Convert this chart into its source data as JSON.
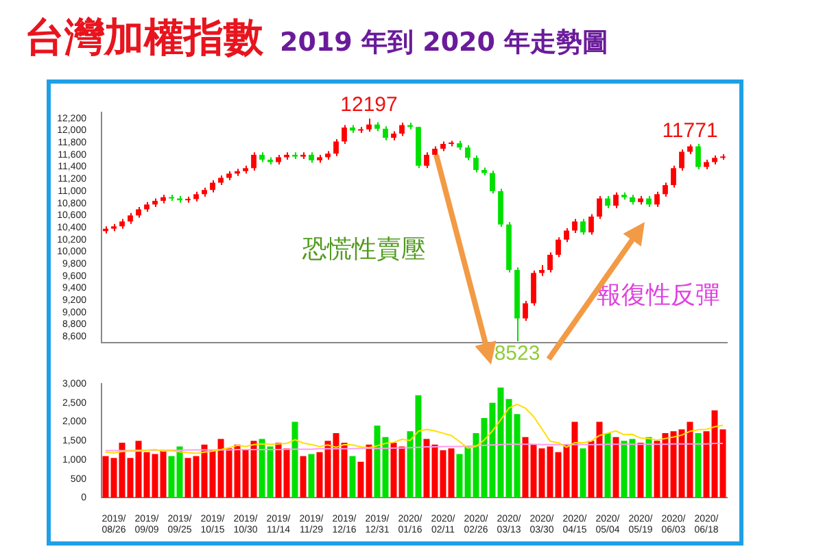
{
  "chart_data": [
    {
      "type": "candlestick",
      "title": "台灣加權指數",
      "subtitle": "2019 年到 2020 年走勢圖",
      "categories": [
        null,
        "2019/08/26",
        null,
        null,
        null,
        "2019/09/09",
        null,
        null,
        null,
        "2019/09/25",
        null,
        null,
        null,
        "2019/10/15",
        null,
        null,
        null,
        "2019/10/30",
        null,
        null,
        null,
        "2019/11/14",
        null,
        null,
        null,
        "2019/11/29",
        null,
        null,
        null,
        "2019/12/16",
        null,
        null,
        null,
        "2019/12/31",
        null,
        null,
        null,
        "2020/01/16",
        null,
        null,
        null,
        "2020/02/11",
        null,
        null,
        null,
        "2020/02/26",
        null,
        null,
        null,
        "2020/03/13",
        null,
        null,
        null,
        "2020/03/30",
        null,
        null,
        null,
        "2020/04/15",
        null,
        null,
        null,
        "2020/05/04",
        null,
        null,
        null,
        "2020/05/19",
        null,
        null,
        null,
        "2020/06/03",
        null,
        null,
        null,
        "2020/06/18",
        null,
        null
      ],
      "ohlc": [
        [
          10340,
          10420,
          10300,
          10380
        ],
        [
          10380,
          10460,
          10340,
          10420
        ],
        [
          10420,
          10540,
          10380,
          10500
        ],
        [
          10500,
          10640,
          10460,
          10600
        ],
        [
          10600,
          10740,
          10560,
          10700
        ],
        [
          10700,
          10820,
          10660,
          10780
        ],
        [
          10780,
          10880,
          10740,
          10840
        ],
        [
          10840,
          10940,
          10800,
          10900
        ],
        [
          10900,
          10940,
          10840,
          10880
        ],
        [
          10880,
          10920,
          10810,
          10850
        ],
        [
          10850,
          10910,
          10810,
          10870
        ],
        [
          10870,
          10990,
          10830,
          10950
        ],
        [
          10950,
          11060,
          10910,
          11020
        ],
        [
          11020,
          11180,
          10980,
          11140
        ],
        [
          11140,
          11260,
          11100,
          11220
        ],
        [
          11220,
          11330,
          11180,
          11290
        ],
        [
          11290,
          11370,
          11250,
          11330
        ],
        [
          11330,
          11420,
          11290,
          11380
        ],
        [
          11380,
          11640,
          11340,
          11600
        ],
        [
          11600,
          11640,
          11480,
          11520
        ],
        [
          11520,
          11560,
          11440,
          11480
        ],
        [
          11480,
          11600,
          11440,
          11560
        ],
        [
          11560,
          11640,
          11520,
          11600
        ],
        [
          11600,
          11640,
          11530,
          11570
        ],
        [
          11570,
          11640,
          11530,
          11600
        ],
        [
          11600,
          11640,
          11470,
          11510
        ],
        [
          11510,
          11600,
          11470,
          11560
        ],
        [
          11560,
          11660,
          11520,
          11620
        ],
        [
          11620,
          11860,
          11580,
          11820
        ],
        [
          11820,
          12090,
          11780,
          12050
        ],
        [
          12050,
          12090,
          11960,
          12000
        ],
        [
          12000,
          12060,
          11960,
          12020
        ],
        [
          12020,
          12197,
          11980,
          12100
        ],
        [
          12100,
          12140,
          11990,
          12030
        ],
        [
          12030,
          12070,
          11840,
          11880
        ],
        [
          11880,
          11990,
          11840,
          11950
        ],
        [
          11950,
          12130,
          11910,
          12090
        ],
        [
          12090,
          12130,
          12020,
          12060
        ],
        [
          12060,
          12060,
          11380,
          11420
        ],
        [
          11420,
          11640,
          11380,
          11600
        ],
        [
          11600,
          11740,
          11560,
          11700
        ],
        [
          11700,
          11820,
          11660,
          11780
        ],
        [
          11780,
          11830,
          11740,
          11790
        ],
        [
          11790,
          11830,
          11680,
          11720
        ],
        [
          11720,
          11760,
          11510,
          11550
        ],
        [
          11550,
          11590,
          11310,
          11350
        ],
        [
          11350,
          11390,
          11260,
          11300
        ],
        [
          11300,
          11340,
          10960,
          11000
        ],
        [
          11000,
          11040,
          10410,
          10450
        ],
        [
          10450,
          10490,
          9660,
          9700
        ],
        [
          9700,
          9740,
          8523,
          8900
        ],
        [
          8900,
          9190,
          8860,
          9150
        ],
        [
          9150,
          9690,
          9110,
          9650
        ],
        [
          9650,
          9780,
          9600,
          9700
        ],
        [
          9700,
          9990,
          9660,
          9950
        ],
        [
          9950,
          10240,
          9910,
          10200
        ],
        [
          10200,
          10390,
          10160,
          10350
        ],
        [
          10350,
          10540,
          10310,
          10500
        ],
        [
          10500,
          10540,
          10280,
          10320
        ],
        [
          10320,
          10620,
          10280,
          10580
        ],
        [
          10580,
          10920,
          10540,
          10880
        ],
        [
          10880,
          10920,
          10720,
          10760
        ],
        [
          10760,
          10980,
          10720,
          10940
        ],
        [
          10940,
          10980,
          10860,
          10900
        ],
        [
          10900,
          10940,
          10780,
          10820
        ],
        [
          10820,
          10920,
          10780,
          10880
        ],
        [
          10880,
          10920,
          10740,
          10780
        ],
        [
          10780,
          10990,
          10740,
          10950
        ],
        [
          10950,
          11140,
          10910,
          11100
        ],
        [
          11100,
          11420,
          11060,
          11380
        ],
        [
          11380,
          11690,
          11340,
          11650
        ],
        [
          11650,
          11771,
          11610,
          11740
        ],
        [
          11740,
          11780,
          11360,
          11400
        ],
        [
          11400,
          11520,
          11360,
          11480
        ],
        [
          11480,
          11590,
          11440,
          11550
        ],
        [
          11550,
          11610,
          11520,
          11570
        ]
      ],
      "colors": [
        "#ff0000",
        "#ff0000",
        "#ff0000",
        "#ff0000",
        "#ff0000",
        "#ff0000",
        "#ff0000",
        "#ff0000",
        "#00e000",
        "#00e000",
        "#ff0000",
        "#ff0000",
        "#ff0000",
        "#ff0000",
        "#ff0000",
        "#ff0000",
        "#ff0000",
        "#ff0000",
        "#ff0000",
        "#00e000",
        "#00e000",
        "#ff0000",
        "#ff0000",
        "#00e000",
        "#ff0000",
        "#00e000",
        "#ff0000",
        "#ff0000",
        "#ff0000",
        "#ff0000",
        "#00e000",
        "#ff0000",
        "#ff0000",
        "#00e000",
        "#00e000",
        "#ff0000",
        "#ff0000",
        "#00e000",
        "#00e000",
        "#ff0000",
        "#ff0000",
        "#ff0000",
        "#ff0000",
        "#00e000",
        "#00e000",
        "#00e000",
        "#00e000",
        "#00e000",
        "#00e000",
        "#00e000",
        "#00e000",
        "#ff0000",
        "#ff0000",
        "#ff0000",
        "#ff0000",
        "#ff0000",
        "#ff0000",
        "#ff0000",
        "#00e000",
        "#ff0000",
        "#ff0000",
        "#00e000",
        "#ff0000",
        "#00e000",
        "#00e000",
        "#ff0000",
        "#00e000",
        "#ff0000",
        "#ff0000",
        "#ff0000",
        "#ff0000",
        "#ff0000",
        "#00e000",
        "#ff0000",
        "#ff0000",
        "#ff0000"
      ],
      "ylim": [
        8500,
        12300
      ],
      "yticks": [
        {
          "value": 8600,
          "label": "8,600"
        },
        {
          "value": 8800,
          "label": "8,800"
        },
        {
          "value": 9000,
          "label": "9,000"
        },
        {
          "value": 9200,
          "label": "9,200"
        },
        {
          "value": 9400,
          "label": "9,400"
        },
        {
          "value": 9600,
          "label": "9,600"
        },
        {
          "value": 9800,
          "label": "9,800"
        },
        {
          "value": 10000,
          "label": "10,000"
        },
        {
          "value": 10200,
          "label": "10,200"
        },
        {
          "value": 10400,
          "label": "10,400"
        },
        {
          "value": 10600,
          "label": "10,600"
        },
        {
          "value": 10800,
          "label": "10,800"
        },
        {
          "value": 11000,
          "label": "11,000"
        },
        {
          "value": 11200,
          "label": "11,200"
        },
        {
          "value": 11400,
          "label": "11,400"
        },
        {
          "value": 11600,
          "label": "11,600"
        },
        {
          "value": 11800,
          "label": "11,800"
        },
        {
          "value": 12000,
          "label": "12,000"
        },
        {
          "value": 12200,
          "label": "12,200"
        }
      ],
      "tick_labels": "y",
      "annotations": [
        {
          "text": "12197",
          "y": 12197
        },
        {
          "text": "8523",
          "y": 8523
        },
        {
          "text": "11771",
          "y": 11771
        },
        "恐慌性賣壓",
        "報復性反彈"
      ]
    },
    {
      "type": "bar",
      "categories": [
        null,
        "2019/08/26",
        null,
        null,
        null,
        "2019/09/09",
        null,
        null,
        null,
        "2019/09/25",
        null,
        null,
        null,
        "2019/10/15",
        null,
        null,
        null,
        "2019/10/30",
        null,
        null,
        null,
        "2019/11/14",
        null,
        null,
        null,
        "2019/11/29",
        null,
        null,
        null,
        "2019/12/16",
        null,
        null,
        null,
        "2019/12/31",
        null,
        null,
        null,
        "2020/01/16",
        null,
        null,
        null,
        "2020/02/11",
        null,
        null,
        null,
        "2020/02/26",
        null,
        null,
        null,
        "2020/03/13",
        null,
        null,
        null,
        "2020/03/30",
        null,
        null,
        null,
        "2020/04/15",
        null,
        null,
        null,
        "2020/05/04",
        null,
        null,
        null,
        "2020/05/19",
        null,
        null,
        null,
        "2020/06/03",
        null,
        null,
        null,
        "2020/06/18",
        null,
        null
      ],
      "series": [
        {
          "type": "bar",
          "colors": [
            "#ff0000",
            "#ff0000",
            "#ff0000",
            "#ff0000",
            "#ff0000",
            "#ff0000",
            "#ff0000",
            "#ff0000",
            "#00e000",
            "#00e000",
            "#ff0000",
            "#ff0000",
            "#ff0000",
            "#ff0000",
            "#ff0000",
            "#ff0000",
            "#ff0000",
            "#ff0000",
            "#ff0000",
            "#00e000",
            "#00e000",
            "#ff0000",
            "#ff0000",
            "#00e000",
            "#ff0000",
            "#00e000",
            "#ff0000",
            "#ff0000",
            "#ff0000",
            "#ff0000",
            "#00e000",
            "#ff0000",
            "#ff0000",
            "#00e000",
            "#00e000",
            "#ff0000",
            "#ff0000",
            "#00e000",
            "#00e000",
            "#ff0000",
            "#ff0000",
            "#ff0000",
            "#ff0000",
            "#00e000",
            "#00e000",
            "#00e000",
            "#00e000",
            "#00e000",
            "#00e000",
            "#00e000",
            "#00e000",
            "#ff0000",
            "#ff0000",
            "#ff0000",
            "#ff0000",
            "#ff0000",
            "#ff0000",
            "#ff0000",
            "#00e000",
            "#ff0000",
            "#ff0000",
            "#00e000",
            "#ff0000",
            "#00e000",
            "#00e000",
            "#ff0000",
            "#00e000",
            "#ff0000",
            "#ff0000",
            "#ff0000",
            "#ff0000",
            "#ff0000",
            "#00e000",
            "#ff0000",
            "#ff0000",
            "#ff0000"
          ],
          "values": [
            1100,
            1050,
            1450,
            1050,
            1500,
            1200,
            1150,
            1250,
            1100,
            1350,
            1050,
            1100,
            1400,
            1250,
            1550,
            1300,
            1400,
            1250,
            1500,
            1550,
            1350,
            1450,
            1300,
            2000,
            1100,
            1150,
            1200,
            1500,
            1700,
            1450,
            1100,
            950,
            1400,
            1900,
            1600,
            1450,
            1350,
            1750,
            2700,
            1550,
            1400,
            1250,
            1300,
            1150,
            1350,
            1700,
            2100,
            2500,
            2900,
            2600,
            2200,
            1600,
            1400,
            1300,
            1350,
            1200,
            1400,
            2000,
            1300,
            1500,
            2000,
            1700,
            1600,
            1500,
            1550,
            1450,
            1600,
            1500,
            1700,
            1750,
            1800,
            2000,
            1700,
            1750,
            2300,
            1800
          ]
        },
        {
          "type": "line",
          "color": "#ffe000",
          "values": [
            1200,
            1180,
            1220,
            1230,
            1230,
            1250,
            1270,
            1230,
            1240,
            1210,
            1190,
            1170,
            1200,
            1230,
            1270,
            1320,
            1380,
            1350,
            1400,
            1420,
            1410,
            1420,
            1430,
            1530,
            1440,
            1400,
            1350,
            1390,
            1330,
            1400,
            1390,
            1340,
            1320,
            1370,
            1430,
            1460,
            1540,
            1510,
            1750,
            1800,
            1760,
            1700,
            1640,
            1480,
            1310,
            1350,
            1520,
            1760,
            2050,
            2360,
            2460,
            2360,
            2140,
            1820,
            1490,
            1450,
            1330,
            1450,
            1450,
            1490,
            1640,
            1700,
            1760,
            1660,
            1670,
            1570,
            1560,
            1520,
            1560,
            1600,
            1650,
            1750,
            1790,
            1800,
            1870,
            1910
          ]
        },
        {
          "type": "line",
          "color": "#ff9cf0",
          "values": [
            1240,
            1240,
            1240,
            1240,
            1250,
            1250,
            1250,
            1250,
            1250,
            1250,
            1260,
            1260,
            1260,
            1260,
            1260,
            1260,
            1270,
            1270,
            1270,
            1270,
            1270,
            1270,
            1280,
            1280,
            1280,
            1280,
            1290,
            1290,
            1290,
            1290,
            1290,
            1300,
            1300,
            1300,
            1300,
            1310,
            1310,
            1320,
            1330,
            1340,
            1340,
            1350,
            1350,
            1350,
            1360,
            1370,
            1380,
            1390,
            1400,
            1410,
            1410,
            1410,
            1410,
            1400,
            1400,
            1400,
            1400,
            1400,
            1400,
            1400,
            1400,
            1410,
            1410,
            1410,
            1410,
            1410,
            1410,
            1410,
            1410,
            1420,
            1420,
            1420,
            1420,
            1420,
            1430,
            1430
          ]
        }
      ],
      "ylim": [
        0,
        3000
      ],
      "yticks": [
        0,
        500,
        {
          "value": 1000,
          "label": "1,000"
        },
        {
          "value": 1500,
          "label": "1,500"
        },
        {
          "value": 2000,
          "label": "2,000"
        },
        {
          "value": 2500,
          "label": "2,500"
        },
        {
          "value": 3000,
          "label": "3,000"
        }
      ]
    }
  ]
}
